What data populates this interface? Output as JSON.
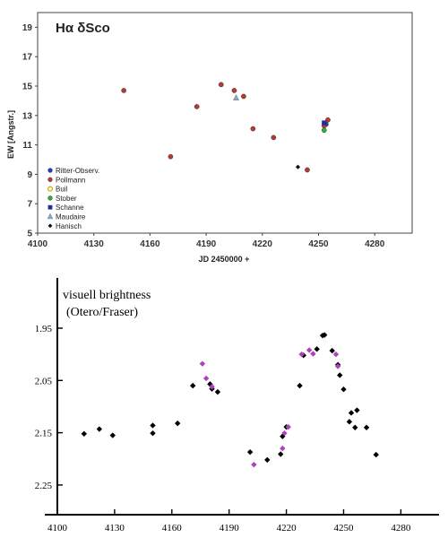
{
  "chart_data": [
    {
      "type": "scatter",
      "title": "Hα δSco",
      "xlabel": "JD 2450000 +",
      "ylabel": "EW [Angstr.]",
      "xlim": [
        4100,
        4300
      ],
      "ylim": [
        5,
        20
      ],
      "x_ticks": [
        4100,
        4130,
        4160,
        4190,
        4220,
        4250,
        4280
      ],
      "y_ticks": [
        5,
        7,
        9,
        11,
        13,
        15,
        17,
        19
      ],
      "grid": false,
      "legend_position": "bottom-left",
      "series": [
        {
          "name": "Ritter-Observ.",
          "marker": "circle",
          "color": "#1f3fbf",
          "x": [
            4254
          ],
          "y": [
            12.4
          ]
        },
        {
          "name": "Pollmann",
          "marker": "circle",
          "color": "#b83a2e",
          "x": [
            4146,
            4171,
            4185,
            4198,
            4205,
            4210,
            4215,
            4226,
            4244,
            4253,
            4255
          ],
          "y": [
            14.7,
            10.2,
            13.6,
            15.1,
            14.7,
            14.3,
            12.1,
            11.5,
            9.3,
            12.3,
            12.7
          ]
        },
        {
          "name": "Buil",
          "marker": "circle-open",
          "color": "#d4b000",
          "x": [],
          "y": []
        },
        {
          "name": "Stober",
          "marker": "circle",
          "color": "#2fae3a",
          "x": [
            4253
          ],
          "y": [
            12.0
          ]
        },
        {
          "name": "Schanne",
          "marker": "square",
          "color": "#1a2f9a",
          "x": [
            4253
          ],
          "y": [
            12.5
          ]
        },
        {
          "name": "Maudaire",
          "marker": "triangle",
          "color": "#8fa8b8",
          "x": [
            4206
          ],
          "y": [
            14.2
          ]
        },
        {
          "name": "Hanisch",
          "marker": "diamond",
          "color": "#111111",
          "x": [
            4239
          ],
          "y": [
            9.5
          ]
        }
      ]
    },
    {
      "type": "scatter",
      "annotation": [
        "visuell brightness",
        "(Otero/Fraser)"
      ],
      "xlim": [
        4100,
        4300
      ],
      "ylim": [
        2.3,
        1.86
      ],
      "y_inverted": true,
      "x_ticks": [
        4100,
        4130,
        4160,
        4190,
        4220,
        4250,
        4280
      ],
      "y_ticks": [
        "1.95",
        "2.05",
        "2.15",
        "2.25"
      ],
      "grid": false,
      "series": [
        {
          "marker": "diamond",
          "color": "#000000",
          "x": [
            4114,
            4122,
            4129,
            4150,
            4150,
            4163,
            4171,
            4180,
            4181,
            4184,
            4201,
            4210,
            4217,
            4218,
            4220,
            4227,
            4229,
            4236,
            4239,
            4240,
            4244,
            4247,
            4248,
            4250,
            4253,
            4254,
            4256,
            4257,
            4262,
            4267
          ],
          "y": [
            2.152,
            2.143,
            2.155,
            2.136,
            2.151,
            2.132,
            2.06,
            2.057,
            2.066,
            2.072,
            2.187,
            2.202,
            2.191,
            2.157,
            2.139,
            2.06,
            2.002,
            1.99,
            1.964,
            1.963,
            1.993,
            2.02,
            2.04,
            2.067,
            2.129,
            2.112,
            2.14,
            2.107,
            2.14,
            2.192
          ]
        },
        {
          "marker": "diamond",
          "color": "#b040c0",
          "x": [
            4176,
            4178,
            4181,
            4203,
            4218,
            4219,
            4221,
            4228,
            4232,
            4234,
            4246,
            4247
          ],
          "y": [
            2.018,
            2.046,
            2.062,
            2.211,
            2.18,
            2.151,
            2.139,
            2.0,
            1.992,
            1.999,
            2.0,
            2.023
          ]
        }
      ]
    }
  ]
}
